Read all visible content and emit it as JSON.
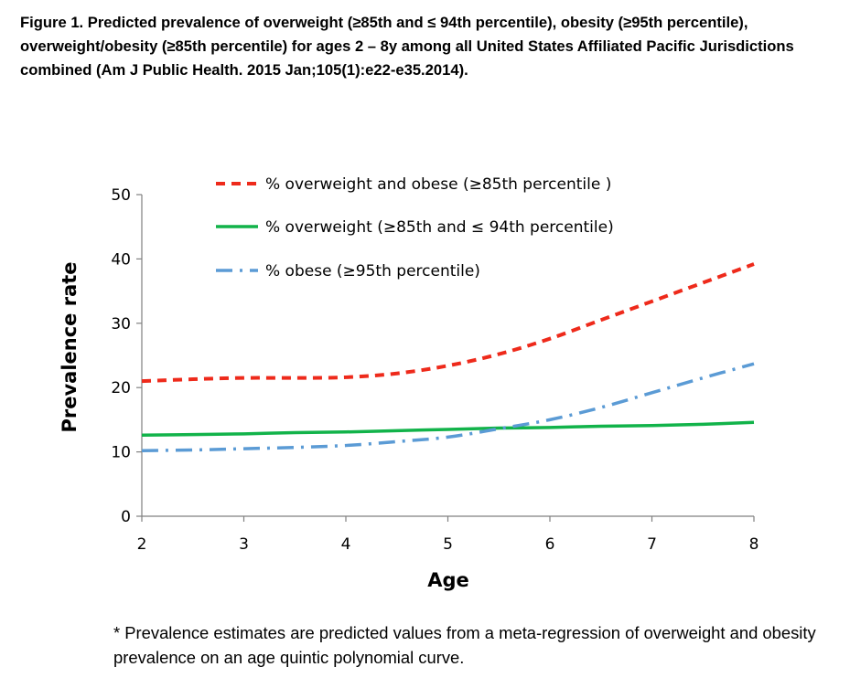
{
  "figure": {
    "title": "Figure 1. Predicted prevalence of overweight (≥85th and ≤ 94th percentile), obesity (≥95th percentile), overweight/obesity (≥85th percentile) for ages 2 – 8y among all United States Affiliated Pacific Jurisdictions combined (Am J Public Health. 2015 Jan;105(1):e22-e35.2014).",
    "footnote": "* Prevalence estimates are predicted values from a meta-regression of overweight and obesity prevalence on an age quintic polynomial curve."
  },
  "chart_data": {
    "type": "line",
    "xlabel": "Age",
    "ylabel": "Prevalence rate",
    "xlim": [
      2,
      8
    ],
    "ylim": [
      0,
      50
    ],
    "x_ticks": [
      "2",
      "3",
      "4",
      "5",
      "6",
      "7",
      "8"
    ],
    "y_ticks": [
      "0",
      "10",
      "20",
      "30",
      "40",
      "50"
    ],
    "grid": false,
    "legend_position": "top-center",
    "x": [
      2,
      2.5,
      3,
      3.5,
      4,
      4.5,
      5,
      5.5,
      6,
      6.5,
      7,
      7.5,
      8
    ],
    "series": [
      {
        "name": "% overweight and obese (≥85th percentile )",
        "color": "#ee2a1b",
        "style": "dashed",
        "values": [
          21.0,
          21.3,
          21.5,
          21.5,
          21.6,
          22.2,
          23.4,
          25.2,
          27.6,
          30.5,
          33.4,
          36.3,
          39.2
        ]
      },
      {
        "name": "% overweight (≥85th and ≤ 94th percentile)",
        "color": "#12b34a",
        "style": "solid",
        "values": [
          12.6,
          12.7,
          12.8,
          13.0,
          13.1,
          13.3,
          13.5,
          13.7,
          13.8,
          14.0,
          14.1,
          14.3,
          14.6
        ]
      },
      {
        "name": "% obese (≥95th percentile)",
        "color": "#5b9bd5",
        "style": "dash-dot",
        "values": [
          10.2,
          10.3,
          10.5,
          10.7,
          11.0,
          11.6,
          12.3,
          13.6,
          15.0,
          16.9,
          19.2,
          21.5,
          23.7
        ]
      }
    ]
  }
}
